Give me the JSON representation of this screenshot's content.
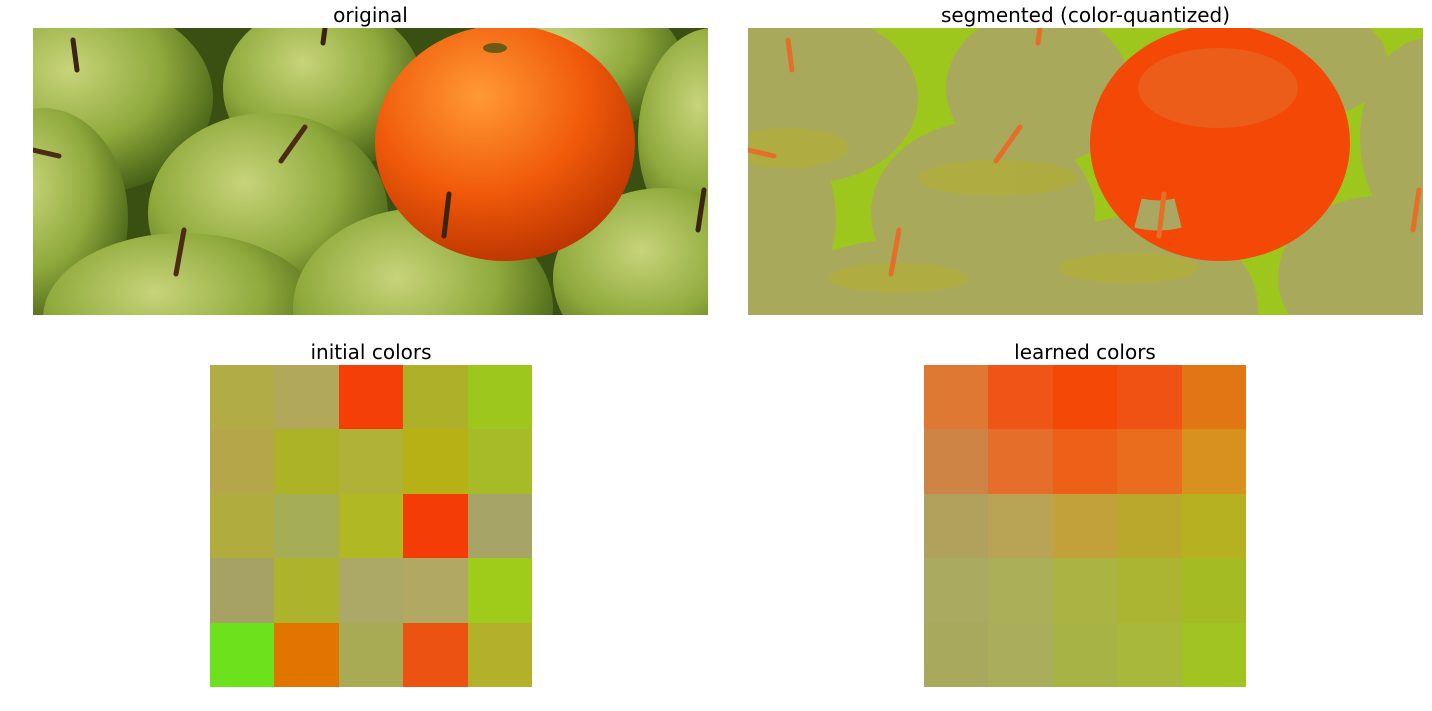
{
  "panels": {
    "original": {
      "title": "original"
    },
    "segmented": {
      "title": "segmented (color-quantized)"
    },
    "initial": {
      "title": "initial colors"
    },
    "learned": {
      "title": "learned colors"
    }
  },
  "initial_colors": [
    "#b2ac46",
    "#b2a85a",
    "#f44006",
    "#aeb128",
    "#9ec71d",
    "#b4a649",
    "#adb326",
    "#b0b238",
    "#b7b116",
    "#a7ba28",
    "#b0ad3e",
    "#a6ad57",
    "#b0b823",
    "#f43c06",
    "#a6a467",
    "#a6a263",
    "#adb42b",
    "#aca866",
    "#b0a863",
    "#9fcb1a",
    "#6de11b",
    "#e27400",
    "#a8aa54",
    "#ed5310",
    "#b2b129"
  ],
  "learned_colors": [
    "#de7832",
    "#f05416",
    "#f44806",
    "#ef5212",
    "#e27614",
    "#ce8444",
    "#e56f2a",
    "#ec6018",
    "#e96d1c",
    "#d8901e",
    "#b0a15d",
    "#b8a454",
    "#c2a03a",
    "#b9a82c",
    "#b6b121",
    "#aaaa60",
    "#aaaf58",
    "#aab442",
    "#abb532",
    "#a5bb24",
    "#a9a95e",
    "#aaad59",
    "#a8b346",
    "#a7b83b",
    "#a0c422"
  ],
  "image_colors": {
    "apple": "#8aa33e",
    "apple_light": "#b7c86a",
    "apple_dark": "#4f6c1c",
    "orange": "#f0570a",
    "orange_light": "#ff8a2a",
    "stem": "#4a2b14",
    "seg_bg": "#9ec71d",
    "seg_apple": "#aaa860",
    "seg_orange": "#f44806",
    "seg_stem": "#e56f2a"
  }
}
